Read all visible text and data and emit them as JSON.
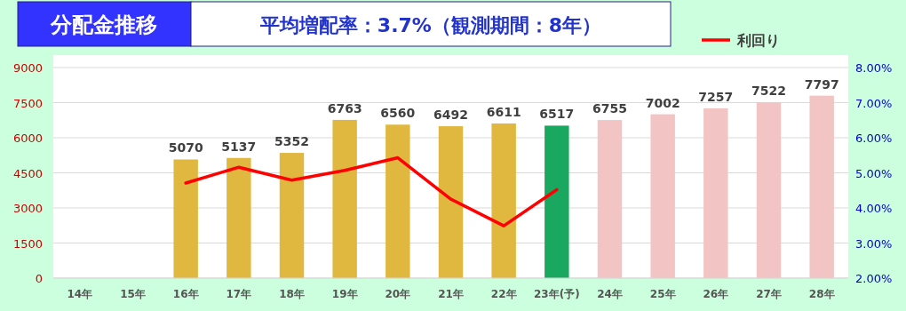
{
  "chart_data": {
    "type": "bar",
    "title": "分配金推移",
    "subtitle": "平均増配率：3.7%（観測期間：8年）",
    "categories": [
      "14年",
      "15年",
      "16年",
      "17年",
      "18年",
      "19年",
      "20年",
      "21年",
      "22年",
      "23年(予)",
      "24年",
      "25年",
      "26年",
      "27年",
      "28年"
    ],
    "series": [
      {
        "value_labels": [
          null,
          null,
          "5070",
          "5137",
          "5352",
          "6763",
          "6560",
          "6492",
          "6611",
          "6517",
          "6755",
          "7002",
          "7257",
          "7522",
          "7797"
        ],
        "colors": [
          null,
          null,
          "#e0b840",
          "#e0b840",
          "#e0b840",
          "#e0b840",
          "#e0b840",
          "#e0b840",
          "#e0b840",
          "#1aa860",
          "#f2c4c4",
          "#f2c4c4",
          "#f2c4c4",
          "#f2c4c4",
          "#f2c4c4"
        ],
        "values": [
          null,
          null,
          5070,
          5137,
          5352,
          6763,
          6560,
          6492,
          6611,
          6517,
          6755,
          7002,
          7257,
          7522,
          7797
        ]
      },
      {
        "type": "line",
        "name": "利回り",
        "color": "#ff0000",
        "axis": "y2",
        "values": [
          null,
          null,
          4.71,
          5.16,
          4.79,
          5.07,
          5.43,
          4.25,
          3.49,
          4.52,
          null,
          null,
          null,
          null,
          null
        ]
      }
    ],
    "ylim": [
      0,
      9000
    ],
    "yticks": [
      0,
      1500,
      3000,
      4500,
      6000,
      7500,
      9000
    ],
    "y2lim": [
      2,
      8
    ],
    "y2ticks": [
      {
        "value": 2,
        "label": "2.00%"
      },
      {
        "value": 3,
        "label": "3.00%"
      },
      {
        "value": 4,
        "label": "4.00%"
      },
      {
        "value": 5,
        "label": "5.00%"
      },
      {
        "value": 6,
        "label": "6.00%"
      },
      {
        "value": 7,
        "label": "7.00%"
      },
      {
        "value": 8,
        "label": "8.00%"
      }
    ],
    "grid": "y",
    "legend": "top right"
  }
}
